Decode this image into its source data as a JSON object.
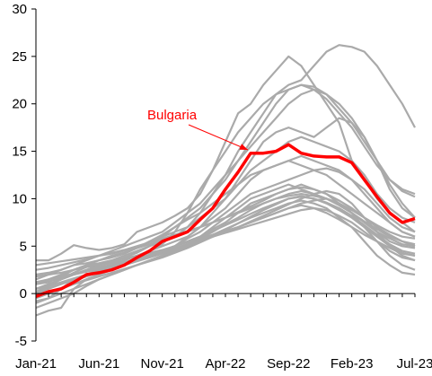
{
  "chart_data": {
    "type": "line",
    "title": "",
    "xlabel": "",
    "ylabel": "",
    "ylim": [
      -5,
      30
    ],
    "yticks": [
      -5,
      0,
      5,
      10,
      15,
      20,
      25,
      30
    ],
    "x_start": "Jan-21",
    "x_end": "Jul-23",
    "x_tick_labels": [
      "Jan-21",
      "Jun-21",
      "Nov-21",
      "Apr-22",
      "Sep-22",
      "Feb-23",
      "Jul-23"
    ],
    "x_tick_indices": [
      0,
      5,
      10,
      15,
      20,
      25,
      30
    ],
    "n_points": 31,
    "grid": false,
    "legend": "none",
    "annotation": {
      "text": "Bulgaria",
      "color": "#ff0000"
    },
    "highlight": {
      "name": "Bulgaria",
      "color": "#ff0000",
      "values": [
        -0.3,
        0.2,
        0.5,
        1.2,
        2.0,
        2.2,
        2.5,
        3.0,
        3.8,
        4.5,
        5.5,
        6.0,
        6.5,
        7.8,
        9.0,
        11.0,
        12.8,
        14.8,
        14.8,
        15.0,
        15.7,
        14.8,
        14.5,
        14.4,
        14.4,
        13.8,
        12.0,
        10.2,
        8.5,
        7.5,
        7.9
      ]
    },
    "series_color": "#aaaaaa",
    "series": [
      {
        "values": [
          3.5,
          3.5,
          4.2,
          5.1,
          4.8,
          4.6,
          4.8,
          5.2,
          6.5,
          7.0,
          7.5,
          8.2,
          9.0,
          10.5,
          13.0,
          16.0,
          19.0,
          20.0,
          22.0,
          23.5,
          25.0,
          24.0,
          22.0,
          20.0,
          18.0,
          14.0,
          12.0,
          10.0,
          8.5,
          7.5,
          6.5
        ]
      },
      {
        "values": [
          0.5,
          1.0,
          1.5,
          2.0,
          2.5,
          3.0,
          3.2,
          3.5,
          4.0,
          4.5,
          5.2,
          6.5,
          8.5,
          11.0,
          13.0,
          15.0,
          17.0,
          18.5,
          20.0,
          21.0,
          22.0,
          22.5,
          24.0,
          25.5,
          26.2,
          26.0,
          25.5,
          24.0,
          22.0,
          20.0,
          17.5
        ]
      },
      {
        "values": [
          1.0,
          1.5,
          2.0,
          2.5,
          3.0,
          3.2,
          3.5,
          4.0,
          4.5,
          5.0,
          5.5,
          6.0,
          7.0,
          8.5,
          10.5,
          12.5,
          15.0,
          17.0,
          19.0,
          21.0,
          21.5,
          22.0,
          21.5,
          20.5,
          19.0,
          17.5,
          15.5,
          13.5,
          12.0,
          10.8,
          10.2
        ]
      },
      {
        "values": [
          0.2,
          0.8,
          1.5,
          2.2,
          2.8,
          3.0,
          3.3,
          3.8,
          4.3,
          5.0,
          6.0,
          7.0,
          8.0,
          9.0,
          10.5,
          12.0,
          14.0,
          16.0,
          18.0,
          20.0,
          21.5,
          22.0,
          21.8,
          21.0,
          19.5,
          18.0,
          16.0,
          14.0,
          12.0,
          11.0,
          10.5
        ]
      },
      {
        "values": [
          -0.5,
          0.0,
          0.5,
          1.0,
          1.5,
          2.0,
          2.5,
          3.0,
          3.5,
          4.0,
          4.5,
          5.0,
          6.0,
          7.0,
          8.5,
          10.0,
          12.0,
          14.0,
          16.0,
          17.0,
          17.5,
          17.0,
          16.5,
          17.5,
          18.5,
          18.0,
          16.5,
          14.0,
          11.0,
          9.0,
          8.0
        ]
      },
      {
        "values": [
          2.0,
          2.2,
          2.5,
          3.0,
          3.5,
          4.0,
          4.5,
          5.0,
          5.5,
          6.0,
          6.5,
          7.5,
          8.5,
          9.5,
          11.0,
          12.5,
          14.0,
          15.5,
          17.0,
          18.5,
          20.0,
          21.0,
          21.5,
          21.0,
          20.0,
          18.5,
          16.5,
          14.0,
          11.5,
          9.5,
          8.0
        ]
      },
      {
        "values": [
          1.0,
          1.2,
          1.8,
          2.5,
          3.0,
          3.5,
          4.0,
          4.3,
          4.8,
          5.5,
          6.0,
          6.5,
          7.0,
          8.0,
          9.0,
          10.0,
          11.5,
          13.0,
          14.0,
          15.0,
          16.0,
          16.5,
          16.0,
          15.5,
          15.0,
          14.0,
          12.5,
          10.5,
          9.0,
          8.0,
          7.5
        ]
      },
      {
        "values": [
          0.0,
          0.5,
          1.0,
          1.5,
          2.0,
          2.5,
          3.0,
          3.5,
          4.0,
          4.5,
          5.0,
          5.5,
          6.0,
          7.0,
          8.0,
          9.0,
          10.5,
          12.0,
          13.0,
          13.5,
          14.0,
          14.5,
          14.0,
          13.5,
          13.0,
          12.0,
          11.0,
          9.5,
          8.0,
          7.0,
          6.5
        ]
      },
      {
        "values": [
          1.5,
          2.0,
          2.5,
          3.0,
          3.2,
          3.5,
          3.8,
          4.2,
          4.8,
          5.5,
          6.2,
          7.0,
          7.8,
          8.5,
          9.5,
          10.5,
          11.5,
          12.5,
          13.0,
          13.5,
          14.0,
          13.5,
          13.0,
          12.5,
          11.5,
          10.5,
          9.5,
          8.5,
          7.5,
          6.5,
          6.0
        ]
      },
      {
        "values": [
          -1.0,
          -0.5,
          0.5,
          1.5,
          2.0,
          2.5,
          2.8,
          3.0,
          3.5,
          4.0,
          4.5,
          5.0,
          5.8,
          6.5,
          7.5,
          8.5,
          9.5,
          10.5,
          11.0,
          11.5,
          12.0,
          12.5,
          13.0,
          13.2,
          12.8,
          12.0,
          10.5,
          9.0,
          7.5,
          6.5,
          6.0
        ]
      },
      {
        "values": [
          -2.3,
          -1.8,
          -1.5,
          0.5,
          1.5,
          2.0,
          2.5,
          3.0,
          3.5,
          4.0,
          4.5,
          5.0,
          5.5,
          6.0,
          7.0,
          8.0,
          9.0,
          10.0,
          10.5,
          11.0,
          11.5,
          11.0,
          10.5,
          10.0,
          9.5,
          8.5,
          7.5,
          6.5,
          5.5,
          5.0,
          4.8
        ]
      },
      {
        "values": [
          0.5,
          1.0,
          1.5,
          2.0,
          2.5,
          2.8,
          3.0,
          3.2,
          3.6,
          4.0,
          4.5,
          5.0,
          5.5,
          6.0,
          6.8,
          7.5,
          8.5,
          9.5,
          10.0,
          10.5,
          11.0,
          11.5,
          11.0,
          10.5,
          9.5,
          8.5,
          7.5,
          6.5,
          5.8,
          5.2,
          5.0
        ]
      },
      {
        "values": [
          1.0,
          1.3,
          1.6,
          2.0,
          2.3,
          2.6,
          2.9,
          3.2,
          3.5,
          3.9,
          4.3,
          4.7,
          5.2,
          5.8,
          6.5,
          7.3,
          8.0,
          8.8,
          9.5,
          10.0,
          10.5,
          10.8,
          10.5,
          10.0,
          9.3,
          8.5,
          7.6,
          6.8,
          6.0,
          5.5,
          5.2
        ]
      },
      {
        "values": [
          0.0,
          0.2,
          0.6,
          1.0,
          1.4,
          1.8,
          2.2,
          2.6,
          3.0,
          3.4,
          3.8,
          4.3,
          4.8,
          5.4,
          6.0,
          6.7,
          7.4,
          8.1,
          8.8,
          9.4,
          10.0,
          10.3,
          10.0,
          9.5,
          8.8,
          8.0,
          7.0,
          6.0,
          5.0,
          4.3,
          4.0
        ]
      },
      {
        "values": [
          -1.5,
          -1.0,
          -0.5,
          0.0,
          0.8,
          1.5,
          2.0,
          2.5,
          3.0,
          3.5,
          4.0,
          4.5,
          5.0,
          5.5,
          6.0,
          6.5,
          7.0,
          7.5,
          8.0,
          8.5,
          9.0,
          9.5,
          9.8,
          10.0,
          9.5,
          8.5,
          7.0,
          5.5,
          4.0,
          3.0,
          2.5
        ]
      },
      {
        "values": [
          2.5,
          2.7,
          3.0,
          3.3,
          3.6,
          4.0,
          4.3,
          4.6,
          5.0,
          5.4,
          5.8,
          6.2,
          6.6,
          7.0,
          7.5,
          8.0,
          8.5,
          9.0,
          9.5,
          10.0,
          10.3,
          10.5,
          10.3,
          10.0,
          9.5,
          8.8,
          8.0,
          7.2,
          6.5,
          6.0,
          5.8
        ]
      },
      {
        "values": [
          0.5,
          0.8,
          1.2,
          1.6,
          2.0,
          2.4,
          2.8,
          3.2,
          3.6,
          4.0,
          4.4,
          4.8,
          5.2,
          5.6,
          6.0,
          6.4,
          6.8,
          7.2,
          7.6,
          8.0,
          8.4,
          8.8,
          9.0,
          8.8,
          8.2,
          7.5,
          6.5,
          5.5,
          4.5,
          3.8,
          3.5
        ]
      },
      {
        "values": [
          1.8,
          2.0,
          2.2,
          2.5,
          2.8,
          3.1,
          3.4,
          3.7,
          4.0,
          4.3,
          4.6,
          5.0,
          5.4,
          5.8,
          6.2,
          6.6,
          7.0,
          7.5,
          8.0,
          8.5,
          9.0,
          9.3,
          9.0,
          8.5,
          7.8,
          7.0,
          6.2,
          5.5,
          4.8,
          4.2,
          4.0
        ]
      },
      {
        "values": [
          -0.8,
          -0.5,
          0.0,
          0.5,
          1.0,
          1.5,
          2.0,
          2.5,
          3.0,
          3.5,
          4.0,
          4.5,
          5.0,
          5.6,
          6.2,
          6.8,
          7.4,
          8.0,
          8.5,
          9.0,
          9.5,
          9.8,
          9.5,
          9.0,
          8.0,
          7.0,
          5.5,
          4.0,
          3.0,
          2.2,
          2.0
        ]
      },
      {
        "values": [
          3.0,
          3.2,
          3.4,
          3.6,
          3.8,
          4.0,
          4.2,
          4.5,
          4.8,
          5.2,
          5.6,
          6.0,
          6.5,
          7.0,
          7.5,
          8.0,
          8.6,
          9.2,
          9.8,
          10.5,
          11.0,
          11.2,
          11.0,
          10.5,
          9.8,
          9.0,
          8.0,
          7.0,
          6.2,
          5.5,
          5.0
        ]
      },
      {
        "values": [
          0.2,
          0.6,
          1.0,
          1.4,
          1.8,
          2.2,
          2.6,
          3.0,
          3.4,
          3.8,
          4.2,
          4.6,
          5.0,
          5.5,
          6.0,
          6.5,
          7.0,
          7.6,
          8.2,
          8.8,
          9.4,
          10.0,
          10.5,
          10.8,
          10.5,
          9.5,
          8.0,
          6.5,
          5.0,
          4.0,
          3.5
        ]
      },
      {
        "values": [
          1.2,
          1.5,
          1.8,
          2.1,
          2.4,
          2.7,
          3.0,
          3.3,
          3.7,
          4.1,
          4.5,
          5.0,
          5.5,
          6.0,
          6.6,
          7.2,
          7.8,
          8.4,
          9.0,
          9.5,
          10.0,
          10.2,
          10.0,
          9.6,
          9.0,
          8.2,
          7.2,
          6.2,
          5.2,
          4.5,
          4.2
        ]
      }
    ]
  }
}
